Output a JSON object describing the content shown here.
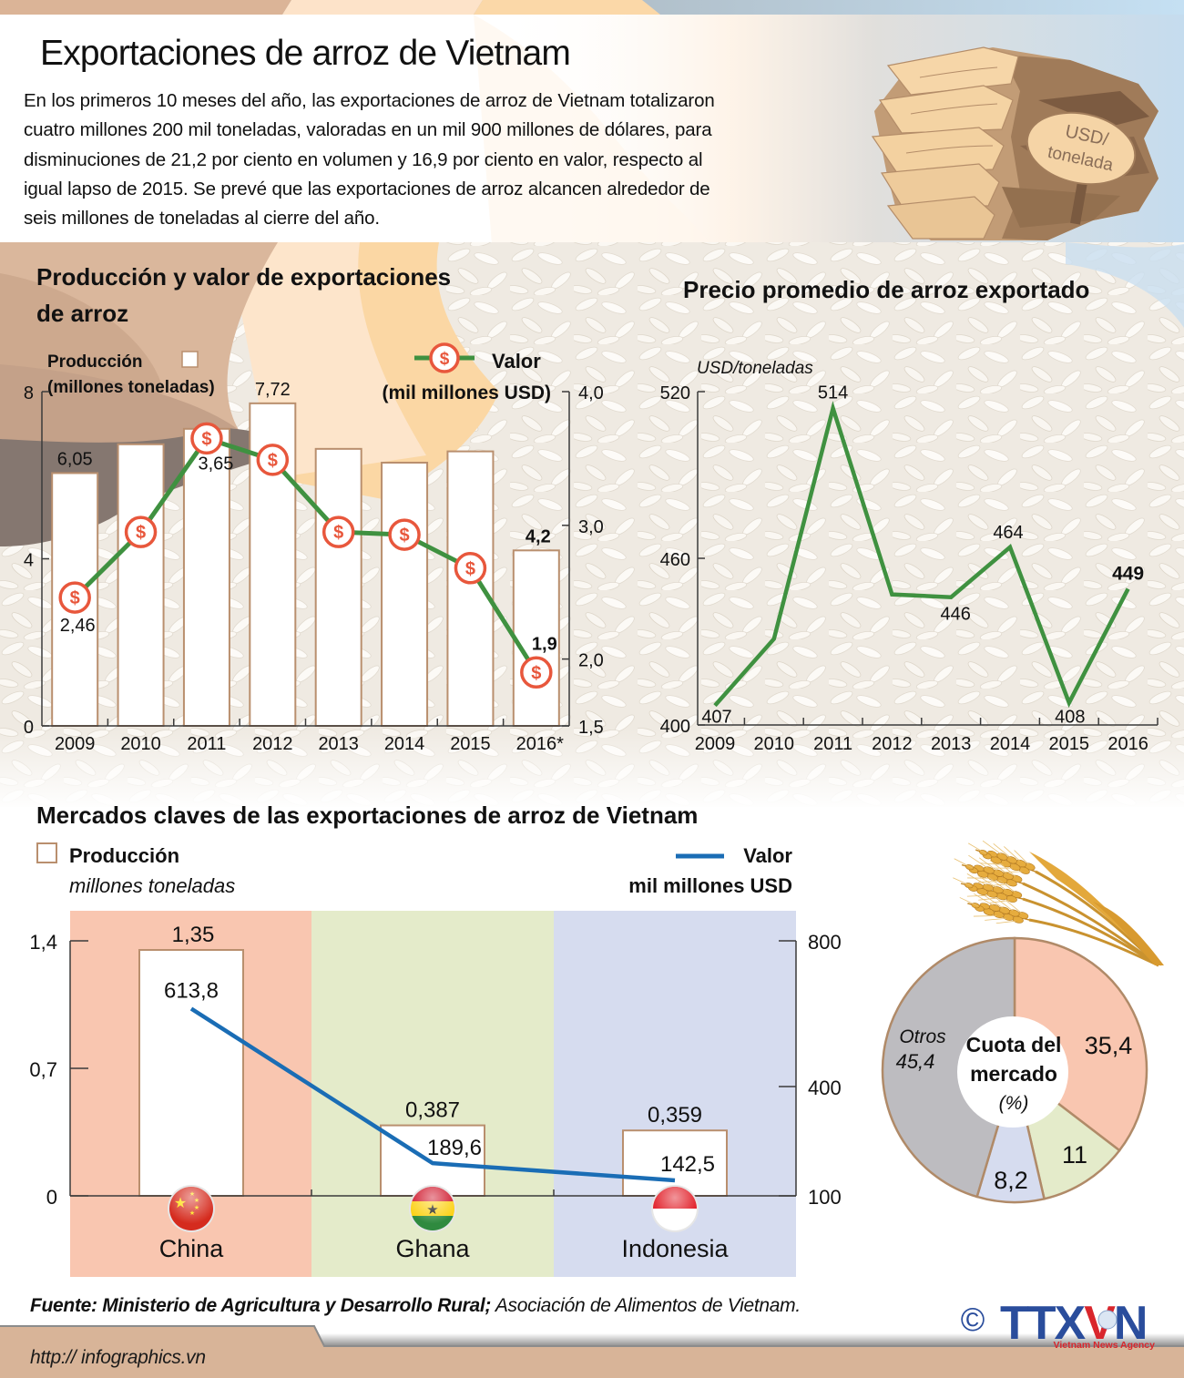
{
  "header": {
    "title": "Exportaciones de arroz de Vietnam",
    "intro_lines": [
      "En los primeros 10 meses del año, las exportaciones de arroz de Vietnam totalizaron",
      "cuatro millones 200 mil toneladas, valoradas  en un mil 900 millones de dólares, para",
      "disminuciones de 21,2 por ciento en volumen y 16,9 por ciento en valor, respecto al",
      "igual lapso de 2015. Se prevé que las exportaciones de arroz alcancen alrededor de",
      "seis millones de toneladas al cierre del año."
    ]
  },
  "illustration": {
    "sign_line1": "USD/",
    "sign_line2": "tonelada"
  },
  "production_chart": {
    "title_line1": "Producción y valor de exportaciones",
    "title_line2": "de arroz",
    "legend_bar_line1": "Producción",
    "legend_bar_line2": "(millones toneladas)",
    "legend_line_line1": "Valor",
    "legend_line_line2": "(mil millones USD)",
    "marker_symbol": "$"
  },
  "price_chart": {
    "title": "Precio promedio de arroz exportado",
    "unit": "USD/toneladas"
  },
  "markets_chart": {
    "title": "Mercados claves de las exportaciones de arroz de Vietnam",
    "legend_bar": "Producción",
    "legend_bar_unit": "millones toneladas",
    "legend_line": "Valor",
    "legend_line_unit": "mil millones USD"
  },
  "share_chart": {
    "center_line1": "Cuota del",
    "center_line2": "mercado",
    "center_line3": "(%)",
    "others_label": "Otros"
  },
  "footer": {
    "source_bold": "Fuente: Ministerio de Agricultura y Desarrollo Rural;",
    "source_rest": " Asociación de Alimentos de Vietnam.",
    "url": "http:// infographics.vn",
    "copyright": "©",
    "logo_part1": "TTX",
    "logo_part2": "V",
    "logo_part3": "N",
    "logo_sub": "Vietnam News Agency"
  },
  "colors": {
    "bar_stroke": "#b98f6e",
    "value_line_green": "#3f9140",
    "marker_red": "#e8573c",
    "value_line_blue": "#1a6db5",
    "china": "#f9c6b0",
    "ghana": "#e4ebca",
    "indonesia": "#d6dcef",
    "others": "#bdbcc0",
    "slice_stroke": "#b08a68",
    "logo_blue": "#2a4d9c",
    "logo_red": "#d9262c"
  },
  "chart_data": [
    {
      "id": "production_value",
      "type": "bar",
      "title": "Producción y valor de exportaciones de arroz",
      "categories": [
        "2009",
        "2010",
        "2011",
        "2012",
        "2013",
        "2014",
        "2015",
        "2016*"
      ],
      "series": [
        {
          "name": "Producción (millones toneladas)",
          "type": "bar",
          "axis": "left",
          "values": [
            6.05,
            6.74,
            7.11,
            7.72,
            6.63,
            6.3,
            6.57,
            4.2
          ],
          "labels": [
            "6,05",
            "",
            "",
            "7,72",
            "",
            "",
            "",
            "4,2"
          ]
        },
        {
          "name": "Valor (mil millones USD)",
          "type": "line",
          "axis": "right",
          "values": [
            2.46,
            2.95,
            3.65,
            3.49,
            2.95,
            2.93,
            2.68,
            1.9
          ],
          "labels": [
            "2,46",
            "",
            "3,65",
            "",
            "",
            "",
            "",
            "1,9"
          ]
        }
      ],
      "xlabel": "",
      "ylabel_left": "Producción (millones toneladas)",
      "ylabel_right": "Valor (mil millones USD)",
      "ylim_left": [
        0,
        8
      ],
      "yticks_left": [
        {
          "v": 0,
          "label": "0"
        },
        {
          "v": 4,
          "label": "4"
        },
        {
          "v": 8,
          "label": "8"
        }
      ],
      "ylim_right": [
        1.5,
        4.0
      ],
      "yticks_right": [
        {
          "v": 1.5,
          "label": "1,5"
        },
        {
          "v": 2.0,
          "label": "2,0"
        },
        {
          "v": 3.0,
          "label": "3,0"
        },
        {
          "v": 4.0,
          "label": "4,0"
        }
      ],
      "grid": false,
      "legend_position": "top"
    },
    {
      "id": "avg_price",
      "type": "line",
      "title": "Precio promedio de arroz exportado",
      "categories": [
        "2009",
        "2010",
        "2011",
        "2012",
        "2013",
        "2014",
        "2015",
        "2016"
      ],
      "series": [
        {
          "name": "Precio promedio",
          "values": [
            407,
            431,
            514,
            447,
            446,
            464,
            408,
            449
          ],
          "labels": [
            "407",
            "",
            "514",
            "",
            "446",
            "464",
            "408",
            "449"
          ]
        }
      ],
      "xlabel": "",
      "ylabel": "USD/toneladas",
      "ylim": [
        400,
        520
      ],
      "yticks": [
        {
          "v": 400,
          "label": "400"
        },
        {
          "v": 460,
          "label": "460"
        },
        {
          "v": 520,
          "label": "520"
        }
      ],
      "grid": false
    },
    {
      "id": "key_markets",
      "type": "bar",
      "title": "Mercados claves de las exportaciones de arroz de Vietnam",
      "categories": [
        "China",
        "Ghana",
        "Indonesia"
      ],
      "series": [
        {
          "name": "Producción (millones toneladas)",
          "type": "bar",
          "axis": "left",
          "values": [
            1.35,
            0.387,
            0.359
          ],
          "labels": [
            "1,35",
            "0,387",
            "0,359"
          ]
        },
        {
          "name": "Valor (mil millones USD)",
          "type": "line",
          "axis": "right",
          "values": [
            613.8,
            189.6,
            142.5
          ],
          "labels": [
            "613,8",
            "189,6",
            "142,5"
          ]
        }
      ],
      "ylim_left": [
        0,
        1.4
      ],
      "yticks_left": [
        {
          "v": 0,
          "label": "0"
        },
        {
          "v": 0.7,
          "label": "0,7"
        },
        {
          "v": 1.4,
          "label": "1,4"
        }
      ],
      "ylim_right": [
        100,
        800
      ],
      "yticks_right": [
        {
          "v": 100,
          "label": "100"
        },
        {
          "v": 400,
          "label": "400"
        },
        {
          "v": 800,
          "label": "800"
        }
      ],
      "grid": false,
      "legend_position": "top"
    },
    {
      "id": "market_share",
      "type": "pie",
      "title": "Cuota del mercado (%)",
      "categories": [
        "China",
        "Ghana",
        "Indonesia",
        "Otros"
      ],
      "values": [
        35.4,
        11,
        8.2,
        45.4
      ],
      "labels": [
        "35,4",
        "11",
        "8,2",
        "45,4"
      ]
    }
  ]
}
